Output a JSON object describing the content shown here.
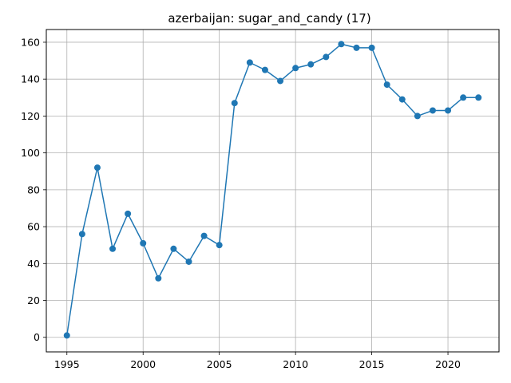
{
  "chart_data": {
    "type": "line",
    "title": "azerbaijan: sugar_and_candy (17)",
    "xlabel": "",
    "ylabel": "",
    "xlim": [
      1993.65,
      2023.35
    ],
    "ylim": [
      -7.9,
      166.9
    ],
    "xticks": [
      1995,
      2000,
      2005,
      2010,
      2015,
      2020
    ],
    "yticks": [
      0,
      20,
      40,
      60,
      80,
      100,
      120,
      140,
      160
    ],
    "grid": true,
    "legend": false,
    "colors": {
      "series": "#1f77b4",
      "grid": "#b0b0b0",
      "axes": "#000000"
    },
    "series": [
      {
        "x": [
          1995,
          1996,
          1997,
          1998,
          1999,
          2000,
          2001,
          2002,
          2003,
          2004,
          2005,
          2006,
          2007,
          2008,
          2009,
          2010,
          2011,
          2012,
          2013,
          2014,
          2015,
          2016,
          2017,
          2018,
          2019,
          2020,
          2021,
          2022
        ],
        "values": [
          1,
          56,
          92,
          48,
          67,
          51,
          32,
          48,
          41,
          55,
          50,
          127,
          149,
          145,
          139,
          146,
          148,
          152,
          159,
          157,
          157,
          137,
          129,
          120,
          123,
          123,
          130,
          130
        ]
      }
    ]
  }
}
